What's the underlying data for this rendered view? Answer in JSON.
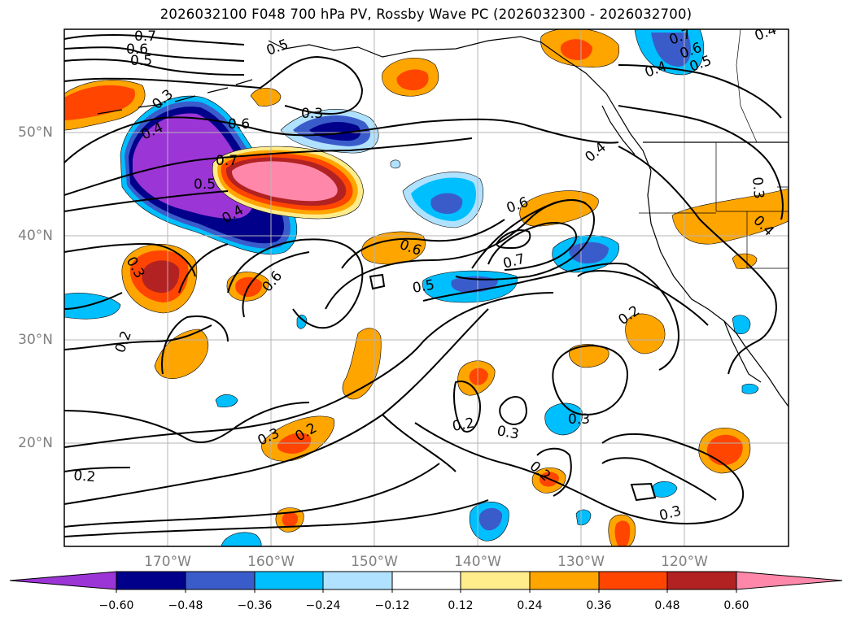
{
  "title": "2026032100 F048 700 hPa PV, Rossby Wave PC (2026032300 - 2026032700)",
  "map": {
    "lat_labels": [
      "50°N",
      "40°N",
      "30°N",
      "20°N"
    ],
    "lon_labels": [
      "170°W",
      "160°W",
      "150°W",
      "140°W",
      "130°W",
      "120°W"
    ],
    "grid": true,
    "lat_range": [
      10,
      60
    ],
    "lon_range": [
      -180,
      -110
    ]
  },
  "contour_labels": [
    "0.7",
    "0.6",
    "0.5",
    "0.5",
    "0.3",
    "0.3",
    "0.4",
    "0.6",
    "0.7",
    "0.5",
    "0.4",
    "0.3",
    "0.6",
    "0.6",
    "0.6",
    "0.7",
    "0.5",
    "0.4",
    "0.2",
    "0.7",
    "0.6",
    "0.5",
    "0.4",
    "0.4",
    "0.3",
    "0.4",
    "0.2",
    "0.3",
    "0.2",
    "0.3",
    "0.3",
    "0.2",
    "0.3",
    "0.2",
    "0.2"
  ],
  "colorbar": {
    "ticks": [
      "−0.60",
      "−0.48",
      "−0.36",
      "−0.24",
      "−0.12",
      "0.12",
      "0.24",
      "0.36",
      "0.48",
      "0.60"
    ],
    "colors": [
      "#9b35d6",
      "#00008b",
      "#3a5ccb",
      "#00bfff",
      "#b0e2ff",
      "#ffffff",
      "#ffec8b",
      "#ffa500",
      "#ff4500",
      "#b22222",
      "#ff88aa"
    ]
  },
  "colors": {
    "grid": "#b4b4b4",
    "contour": "#000000",
    "coast": "#000000",
    "tick_label": "#808080"
  }
}
